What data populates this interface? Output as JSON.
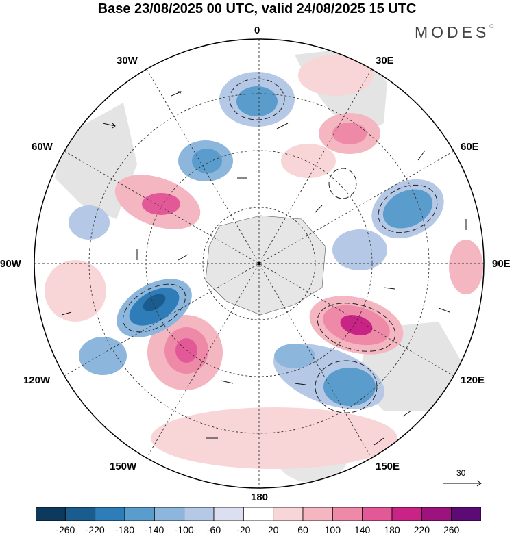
{
  "title": "Base 23/08/2025 00 UTC, valid 24/08/2025 15 UTC",
  "brand": "MODES",
  "brand_mark": "©",
  "projection": "polar stereographic south",
  "longitude_labels": {
    "top": "0",
    "top_right": "30E",
    "right_upper": "60E",
    "right": "90E",
    "right_lower": "120E",
    "bottom_right": "150E",
    "bottom": "180",
    "bottom_left": "150W",
    "left_lower": "120W",
    "left": "90W",
    "left_upper": "60W",
    "top_left": "30W"
  },
  "colorbar": {
    "colors": [
      "#0d3a5c",
      "#1a5c8e",
      "#2e7db8",
      "#5a9dcc",
      "#8cb6dc",
      "#b5c8e6",
      "#dcdff0",
      "#ffffff",
      "#f8d6d8",
      "#f4b6c0",
      "#ee8aa8",
      "#e35998",
      "#c92485",
      "#9c137d",
      "#5c0b74"
    ],
    "tick_labels": [
      "-260",
      "-220",
      "-180",
      "-140",
      "-100",
      "-60",
      "-20",
      "20",
      "60",
      "100",
      "140",
      "180",
      "220",
      "260"
    ]
  },
  "reference_vector": "30",
  "legend_arrow_icon": "right-arrow-icon"
}
